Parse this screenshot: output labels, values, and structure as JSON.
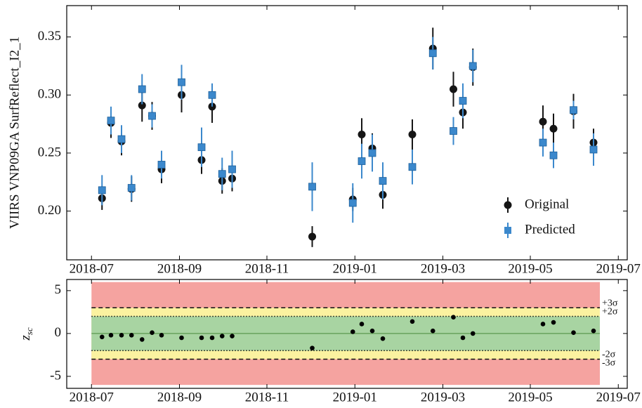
{
  "chart_data": [
    {
      "type": "scatter",
      "ylabel": "VIIRS VNP09GA SurfReflect_I2_1",
      "x": [
        2018.52,
        2018.537,
        2018.557,
        2018.576,
        2018.596,
        2018.615,
        2018.633,
        2018.671,
        2018.709,
        2018.729,
        2018.748,
        2018.767,
        2018.919,
        2018.996,
        2019.013,
        2019.033,
        2019.053,
        2019.109,
        2019.148,
        2019.187,
        2019.205,
        2019.224,
        2019.357,
        2019.377,
        2019.415,
        2019.453
      ],
      "series": [
        {
          "name": "Original",
          "color": "#151515",
          "marker": "circle",
          "values": [
            0.211,
            0.276,
            0.26,
            0.219,
            0.291,
            0.282,
            0.236,
            0.3,
            0.244,
            0.29,
            0.226,
            0.228,
            0.178,
            0.21,
            0.266,
            0.254,
            0.214,
            0.266,
            0.34,
            0.305,
            0.285,
            0.324,
            0.277,
            0.271,
            0.286,
            0.259
          ],
          "errors": [
            0.01,
            0.013,
            0.012,
            0.011,
            0.014,
            0.012,
            0.012,
            0.015,
            0.012,
            0.014,
            0.011,
            0.011,
            0.009,
            0.01,
            0.014,
            0.013,
            0.012,
            0.013,
            0.018,
            0.015,
            0.014,
            0.016,
            0.014,
            0.013,
            0.015,
            0.012
          ]
        },
        {
          "name": "Predicted",
          "color": "#3b88cc",
          "marker": "square",
          "values": [
            0.218,
            0.278,
            0.262,
            0.22,
            0.305,
            0.282,
            0.24,
            0.311,
            0.255,
            0.3,
            0.232,
            0.236,
            0.221,
            0.207,
            0.243,
            0.25,
            0.226,
            0.238,
            0.336,
            0.269,
            0.295,
            0.325,
            0.259,
            0.248,
            0.287,
            0.253
          ],
          "errors": [
            0.013,
            0.012,
            0.012,
            0.011,
            0.013,
            0.01,
            0.012,
            0.015,
            0.017,
            0.01,
            0.014,
            0.016,
            0.021,
            0.017,
            0.015,
            0.016,
            0.016,
            0.015,
            0.014,
            0.012,
            0.015,
            0.014,
            0.012,
            0.011,
            0.008,
            0.014
          ]
        }
      ],
      "xlim": [
        2018.453,
        2019.517
      ],
      "xticks": [
        {
          "value": 2018.5,
          "label": "2018-07"
        },
        {
          "value": 2018.667,
          "label": "2018-09"
        },
        {
          "value": 2018.833,
          "label": "2018-11"
        },
        {
          "value": 2019.0,
          "label": "2019-01"
        },
        {
          "value": 2019.167,
          "label": "2019-03"
        },
        {
          "value": 2019.333,
          "label": "2019-05"
        },
        {
          "value": 2019.5,
          "label": "2019-07"
        }
      ],
      "ylim": [
        0.158,
        0.377
      ],
      "yticks": [
        {
          "value": 0.2,
          "label": "0.20"
        },
        0.25,
        {
          "value": 0.3,
          "label": "0.30"
        },
        0.35
      ],
      "legend": "lower right"
    },
    {
      "type": "scatter",
      "ylabel": "z",
      "ylabel_subscript": "sc",
      "x": [
        2018.52,
        2018.537,
        2018.557,
        2018.576,
        2018.596,
        2018.615,
        2018.633,
        2018.671,
        2018.709,
        2018.729,
        2018.748,
        2018.767,
        2018.919,
        2018.996,
        2019.013,
        2019.033,
        2019.053,
        2019.109,
        2019.148,
        2019.187,
        2019.205,
        2019.224,
        2019.357,
        2019.377,
        2019.415,
        2019.453
      ],
      "values": [
        -0.4,
        -0.2,
        -0.2,
        -0.2,
        -0.7,
        0.1,
        -0.2,
        -0.5,
        -0.5,
        -0.5,
        -0.3,
        -0.3,
        -1.7,
        0.2,
        1.1,
        0.3,
        -0.6,
        1.4,
        0.3,
        1.9,
        -0.5,
        0.0,
        1.1,
        1.3,
        0.1,
        0.3
      ],
      "color": "#000000",
      "bands": [
        {
          "from": -6,
          "to": 6,
          "color": "#f5a3a0"
        },
        {
          "from": -3,
          "to": 3,
          "color": "#fbf2a0"
        },
        {
          "from": -2,
          "to": 2,
          "color": "#a8d4a2"
        }
      ],
      "band_xlim": [
        2018.5,
        2019.465
      ],
      "center_line": {
        "value": 0,
        "color": "#5a9a50"
      },
      "sigma_lines": [
        {
          "value": 3,
          "label": "+3σ",
          "style": "dashed"
        },
        {
          "value": 2,
          "label": "+2σ",
          "style": "dotted"
        },
        {
          "value": -2,
          "label": "-2σ",
          "style": "dotted"
        },
        {
          "value": -3,
          "label": "-3σ",
          "style": "dashed"
        }
      ],
      "xlim": [
        2018.453,
        2019.517
      ],
      "xticks": [
        {
          "value": 2018.5,
          "label": "2018-07"
        },
        {
          "value": 2018.667,
          "label": "2018-09"
        },
        {
          "value": 2018.833,
          "label": "2018-11"
        },
        {
          "value": 2019.0,
          "label": "2019-01"
        },
        {
          "value": 2019.167,
          "label": "2019-03"
        },
        {
          "value": 2019.333,
          "label": "2019-05"
        },
        {
          "value": 2019.5,
          "label": "2019-07"
        }
      ],
      "ylim": [
        -6.4,
        6.3
      ],
      "yticks": [
        -5,
        0,
        5
      ]
    }
  ]
}
